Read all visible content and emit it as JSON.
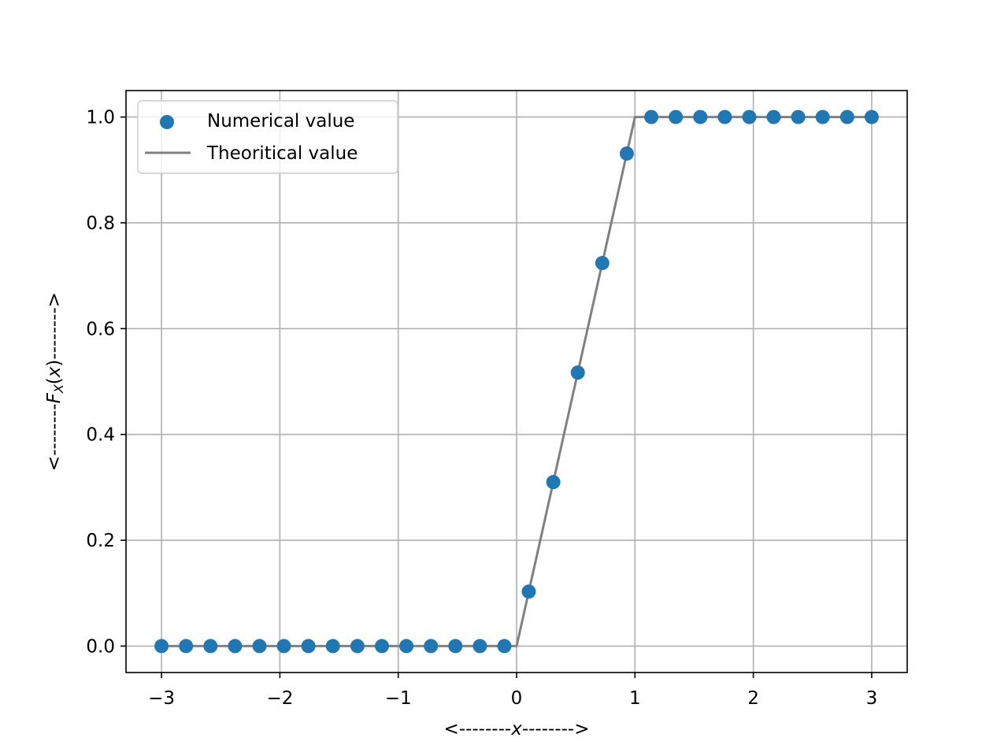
{
  "chart_data": {
    "type": "scatter",
    "title": "",
    "xlabel_parts": [
      "<--------",
      "x",
      "-------->"
    ],
    "ylabel_parts": [
      "<--------",
      "F",
      "X",
      "(",
      "x",
      ")",
      "-------->"
    ],
    "xlim": [
      -3.3,
      3.3
    ],
    "ylim": [
      -0.05,
      1.05
    ],
    "xticks": [
      -3,
      -2,
      -1,
      0,
      1,
      2,
      3
    ],
    "xtick_labels": [
      "−3",
      "−2",
      "−1",
      "0",
      "1",
      "2",
      "3"
    ],
    "yticks": [
      0.0,
      0.2,
      0.4,
      0.6,
      0.8,
      1.0
    ],
    "ytick_labels": [
      "0.0",
      "0.2",
      "0.4",
      "0.6",
      "0.8",
      "1.0"
    ],
    "grid": true,
    "legend_position": "top-left",
    "series": [
      {
        "name": "Numerical value",
        "kind": "scatter",
        "color": "#1f77b4",
        "x": [
          -3.0,
          -2.793,
          -2.586,
          -2.379,
          -2.172,
          -1.966,
          -1.759,
          -1.552,
          -1.345,
          -1.138,
          -0.931,
          -0.724,
          -0.517,
          -0.31,
          -0.103,
          0.103,
          0.31,
          0.517,
          0.724,
          0.931,
          1.138,
          1.345,
          1.552,
          1.759,
          1.966,
          2.172,
          2.379,
          2.586,
          2.793,
          3.0
        ],
        "y": [
          0,
          0,
          0,
          0,
          0,
          0,
          0,
          0,
          0,
          0,
          0,
          0,
          0,
          0,
          0,
          0.103,
          0.31,
          0.517,
          0.724,
          0.931,
          1.0,
          1.0,
          1.0,
          1.0,
          1.0,
          1.0,
          1.0,
          1.0,
          1.0,
          1.0
        ]
      },
      {
        "name": "Theoritical value",
        "kind": "line",
        "color": "#808080",
        "x": [
          -3.0,
          -0.103,
          0.0,
          1.0,
          1.138,
          3.0
        ],
        "y": [
          0,
          0,
          0.0,
          1.0,
          1.0,
          1.0
        ]
      }
    ]
  }
}
